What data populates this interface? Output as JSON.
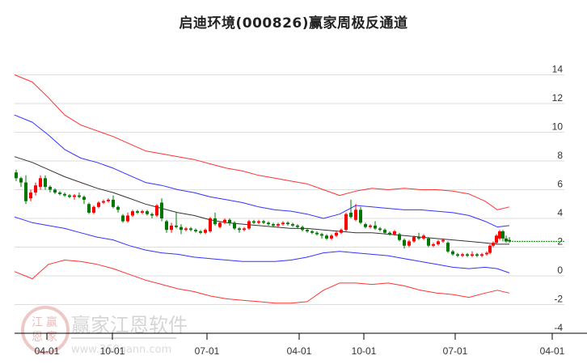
{
  "title": "启迪环境(000826)赢家周极反通道",
  "watermark": {
    "brand": "赢家江恩软件",
    "url": "www.360gann.com",
    "seal_chars": [
      "江",
      "赢",
      "恩",
      "家"
    ]
  },
  "colors": {
    "outer_band": "#ff3333",
    "inner_band": "#3333ff",
    "mid_line": "#333333",
    "candle_up": "#ff0000",
    "candle_down": "#007700",
    "last_price_line": "#008800",
    "grid": "#dddddd",
    "axis": "#000000"
  },
  "chart_data": {
    "type": "line",
    "title": "启迪环境(000826)赢家周极反通道",
    "xlabel": "",
    "ylabel": "",
    "ylim": [
      -4,
      15
    ],
    "y_ticks": [
      14,
      12,
      10,
      8,
      6,
      4,
      2,
      0,
      -2,
      -4
    ],
    "x_ticks": [
      {
        "label": "04-01",
        "x": 58
      },
      {
        "label": "10-01",
        "x": 139
      },
      {
        "label": "07-01",
        "x": 256
      },
      {
        "label": "04-01",
        "x": 370
      },
      {
        "label": "10-01",
        "x": 450
      },
      {
        "label": "07-01",
        "x": 563
      },
      {
        "label": "04-01",
        "x": 683
      }
    ],
    "grid": true,
    "legend": "none",
    "x": [
      18,
      40,
      60,
      80,
      100,
      120,
      140,
      160,
      180,
      200,
      220,
      240,
      260,
      280,
      300,
      320,
      340,
      360,
      380,
      400,
      420,
      440,
      460,
      480,
      500,
      520,
      540,
      560,
      580,
      600,
      615,
      630
    ],
    "series": [
      {
        "name": "outer_upper",
        "color": "#ff3333",
        "values": [
          14.0,
          13.5,
          12.4,
          11.2,
          10.5,
          10.1,
          9.7,
          9.2,
          8.7,
          8.5,
          8.3,
          8.1,
          7.8,
          7.5,
          7.3,
          7.0,
          6.8,
          6.6,
          6.4,
          6.0,
          5.6,
          5.9,
          6.1,
          6.0,
          6.1,
          6.0,
          6.0,
          5.9,
          5.7,
          5.2,
          4.6,
          4.8
        ]
      },
      {
        "name": "inner_upper",
        "color": "#3333ff",
        "values": [
          11.2,
          10.7,
          9.8,
          8.8,
          8.2,
          7.9,
          7.5,
          7.0,
          6.5,
          6.3,
          6.0,
          5.8,
          5.5,
          5.3,
          5.1,
          4.8,
          4.6,
          4.5,
          4.3,
          4.0,
          4.3,
          4.9,
          4.8,
          4.7,
          4.6,
          4.6,
          4.5,
          4.4,
          4.2,
          3.8,
          3.4,
          3.5
        ]
      },
      {
        "name": "middle",
        "color": "#333333",
        "values": [
          8.3,
          7.9,
          7.4,
          6.9,
          6.5,
          6.1,
          5.8,
          5.4,
          5.0,
          4.7,
          4.4,
          4.2,
          3.9,
          3.7,
          3.6,
          3.5,
          3.4,
          3.3,
          3.3,
          3.2,
          3.1,
          3.0,
          3.0,
          2.9,
          2.8,
          2.7,
          2.6,
          2.5,
          2.4,
          2.3,
          2.2,
          2.2
        ]
      },
      {
        "name": "inner_lower",
        "color": "#3333ff",
        "values": [
          4.1,
          3.7,
          3.5,
          3.3,
          3.0,
          2.7,
          2.5,
          2.1,
          1.8,
          1.6,
          1.5,
          1.3,
          1.2,
          1.1,
          1.0,
          1.0,
          1.0,
          1.1,
          1.3,
          1.6,
          1.7,
          1.6,
          1.5,
          1.4,
          1.2,
          1.0,
          0.8,
          0.6,
          0.5,
          0.6,
          0.5,
          0.2
        ]
      },
      {
        "name": "outer_lower",
        "color": "#ff3333",
        "values": [
          0.3,
          -0.2,
          0.8,
          1.1,
          1.0,
          0.8,
          0.5,
          0.1,
          -0.3,
          -0.6,
          -0.9,
          -1.1,
          -1.4,
          -1.6,
          -1.7,
          -1.8,
          -1.9,
          -1.9,
          -1.8,
          -1.0,
          -0.5,
          -0.5,
          -0.6,
          -0.5,
          -0.7,
          -1.0,
          -1.2,
          -1.3,
          -1.5,
          -1.2,
          -1.0,
          -1.2
        ]
      }
    ],
    "candles": [
      {
        "x": 20,
        "o": 7.2,
        "c": 6.8,
        "h": 7.4,
        "l": 6.6
      },
      {
        "x": 26,
        "o": 6.8,
        "c": 6.5,
        "h": 6.9,
        "l": 6.2
      },
      {
        "x": 32,
        "o": 6.5,
        "c": 5.2,
        "h": 7.0,
        "l": 5.0
      },
      {
        "x": 38,
        "o": 5.4,
        "c": 5.8,
        "h": 6.0,
        "l": 5.2
      },
      {
        "x": 44,
        "o": 5.8,
        "c": 6.3,
        "h": 6.5,
        "l": 5.6
      },
      {
        "x": 50,
        "o": 6.2,
        "c": 6.8,
        "h": 7.0,
        "l": 6.0
      },
      {
        "x": 56,
        "o": 6.8,
        "c": 6.2,
        "h": 7.0,
        "l": 6.0
      },
      {
        "x": 62,
        "o": 6.2,
        "c": 6.0,
        "h": 6.3,
        "l": 5.8
      },
      {
        "x": 68,
        "o": 6.0,
        "c": 5.8,
        "h": 6.1,
        "l": 5.7
      },
      {
        "x": 74,
        "o": 5.8,
        "c": 5.7,
        "h": 5.9,
        "l": 5.6
      },
      {
        "x": 80,
        "o": 5.7,
        "c": 5.6,
        "h": 5.8,
        "l": 5.5
      },
      {
        "x": 86,
        "o": 5.6,
        "c": 5.5,
        "h": 5.7,
        "l": 5.4
      },
      {
        "x": 92,
        "o": 5.5,
        "c": 5.6,
        "h": 5.7,
        "l": 5.3
      },
      {
        "x": 98,
        "o": 5.6,
        "c": 5.5,
        "h": 5.8,
        "l": 5.4
      },
      {
        "x": 104,
        "o": 5.5,
        "c": 5.3,
        "h": 5.6,
        "l": 5.0
      },
      {
        "x": 110,
        "o": 5.0,
        "c": 4.4,
        "h": 5.1,
        "l": 4.3
      },
      {
        "x": 116,
        "o": 4.4,
        "c": 4.8,
        "h": 4.9,
        "l": 4.3
      },
      {
        "x": 122,
        "o": 4.8,
        "c": 5.1,
        "h": 5.2,
        "l": 4.7
      },
      {
        "x": 128,
        "o": 5.1,
        "c": 5.2,
        "h": 5.3,
        "l": 5.0
      },
      {
        "x": 134,
        "o": 5.2,
        "c": 5.3,
        "h": 5.4,
        "l": 5.1
      },
      {
        "x": 140,
        "o": 5.3,
        "c": 4.8,
        "h": 5.6,
        "l": 4.7
      },
      {
        "x": 146,
        "o": 4.8,
        "c": 4.6,
        "h": 4.9,
        "l": 4.4
      },
      {
        "x": 152,
        "o": 4.2,
        "c": 3.8,
        "h": 4.3,
        "l": 3.7
      },
      {
        "x": 158,
        "o": 3.8,
        "c": 4.2,
        "h": 4.4,
        "l": 3.7
      },
      {
        "x": 164,
        "o": 4.2,
        "c": 4.5,
        "h": 4.6,
        "l": 4.1
      },
      {
        "x": 170,
        "o": 4.5,
        "c": 4.4,
        "h": 4.6,
        "l": 4.3
      },
      {
        "x": 176,
        "o": 4.4,
        "c": 4.5,
        "h": 4.6,
        "l": 4.3
      },
      {
        "x": 182,
        "o": 4.5,
        "c": 4.3,
        "h": 4.6,
        "l": 4.2
      },
      {
        "x": 188,
        "o": 4.3,
        "c": 4.2,
        "h": 4.4,
        "l": 4.0
      },
      {
        "x": 194,
        "o": 4.2,
        "c": 4.9,
        "h": 5.0,
        "l": 4.1
      },
      {
        "x": 200,
        "o": 5.1,
        "c": 4.0,
        "h": 5.4,
        "l": 3.8
      },
      {
        "x": 206,
        "o": 3.8,
        "c": 3.2,
        "h": 3.9,
        "l": 3.0
      },
      {
        "x": 212,
        "o": 3.2,
        "c": 3.5,
        "h": 3.7,
        "l": 3.0
      },
      {
        "x": 218,
        "o": 3.5,
        "c": 3.4,
        "h": 4.4,
        "l": 3.3
      },
      {
        "x": 224,
        "o": 3.4,
        "c": 3.2,
        "h": 3.6,
        "l": 2.9
      },
      {
        "x": 230,
        "o": 3.2,
        "c": 3.3,
        "h": 3.4,
        "l": 3.1
      },
      {
        "x": 236,
        "o": 3.3,
        "c": 3.2,
        "h": 3.4,
        "l": 3.1
      },
      {
        "x": 242,
        "o": 3.2,
        "c": 3.1,
        "h": 3.3,
        "l": 3.0
      },
      {
        "x": 248,
        "o": 3.1,
        "c": 3.0,
        "h": 3.2,
        "l": 2.9
      },
      {
        "x": 254,
        "o": 3.0,
        "c": 3.2,
        "h": 3.3,
        "l": 2.9
      },
      {
        "x": 260,
        "o": 3.1,
        "c": 4.0,
        "h": 4.1,
        "l": 3.0
      },
      {
        "x": 266,
        "o": 4.0,
        "c": 3.6,
        "h": 4.4,
        "l": 3.5
      },
      {
        "x": 272,
        "o": 3.4,
        "c": 3.7,
        "h": 3.8,
        "l": 3.3
      },
      {
        "x": 278,
        "o": 3.7,
        "c": 3.9,
        "h": 4.0,
        "l": 3.6
      },
      {
        "x": 284,
        "o": 3.9,
        "c": 3.7,
        "h": 4.0,
        "l": 3.5
      },
      {
        "x": 290,
        "o": 3.7,
        "c": 3.3,
        "h": 3.8,
        "l": 3.2
      },
      {
        "x": 296,
        "o": 3.3,
        "c": 3.2,
        "h": 3.4,
        "l": 3.0
      },
      {
        "x": 302,
        "o": 3.2,
        "c": 3.3,
        "h": 3.4,
        "l": 3.1
      },
      {
        "x": 308,
        "o": 3.3,
        "c": 3.8,
        "h": 3.9,
        "l": 3.2
      },
      {
        "x": 314,
        "o": 3.8,
        "c": 3.7,
        "h": 3.9,
        "l": 3.6
      },
      {
        "x": 320,
        "o": 3.7,
        "c": 3.8,
        "h": 3.9,
        "l": 3.6
      },
      {
        "x": 326,
        "o": 3.8,
        "c": 3.7,
        "h": 3.9,
        "l": 3.6
      },
      {
        "x": 332,
        "o": 3.7,
        "c": 3.6,
        "h": 3.8,
        "l": 3.5
      },
      {
        "x": 338,
        "o": 3.6,
        "c": 3.5,
        "h": 3.7,
        "l": 3.4
      },
      {
        "x": 344,
        "o": 3.5,
        "c": 3.6,
        "h": 3.7,
        "l": 3.4
      },
      {
        "x": 350,
        "o": 3.6,
        "c": 3.7,
        "h": 3.8,
        "l": 3.5
      },
      {
        "x": 356,
        "o": 3.7,
        "c": 3.6,
        "h": 3.8,
        "l": 3.5
      },
      {
        "x": 362,
        "o": 3.6,
        "c": 3.5,
        "h": 3.7,
        "l": 3.4
      },
      {
        "x": 368,
        "o": 3.5,
        "c": 3.4,
        "h": 3.6,
        "l": 3.3
      },
      {
        "x": 374,
        "o": 3.4,
        "c": 3.2,
        "h": 3.5,
        "l": 3.1
      },
      {
        "x": 380,
        "o": 3.2,
        "c": 3.1,
        "h": 3.3,
        "l": 3.0
      },
      {
        "x": 386,
        "o": 3.1,
        "c": 3.0,
        "h": 3.2,
        "l": 2.9
      },
      {
        "x": 392,
        "o": 3.0,
        "c": 2.9,
        "h": 3.1,
        "l": 2.8
      },
      {
        "x": 398,
        "o": 2.9,
        "c": 2.8,
        "h": 3.0,
        "l": 2.6
      },
      {
        "x": 404,
        "o": 2.8,
        "c": 2.6,
        "h": 2.9,
        "l": 2.5
      },
      {
        "x": 410,
        "o": 2.6,
        "c": 2.8,
        "h": 2.9,
        "l": 2.5
      },
      {
        "x": 416,
        "o": 2.8,
        "c": 3.0,
        "h": 3.1,
        "l": 2.7
      },
      {
        "x": 422,
        "o": 3.0,
        "c": 3.2,
        "h": 3.3,
        "l": 2.9
      },
      {
        "x": 428,
        "o": 3.2,
        "c": 4.3,
        "h": 4.4,
        "l": 3.1
      },
      {
        "x": 434,
        "o": 4.4,
        "c": 4.1,
        "h": 5.3,
        "l": 4.0
      },
      {
        "x": 440,
        "o": 3.9,
        "c": 4.6,
        "h": 5.0,
        "l": 3.8
      },
      {
        "x": 446,
        "o": 4.6,
        "c": 3.7,
        "h": 4.8,
        "l": 3.6
      },
      {
        "x": 452,
        "o": 3.6,
        "c": 3.4,
        "h": 3.7,
        "l": 3.3
      },
      {
        "x": 458,
        "o": 3.4,
        "c": 3.5,
        "h": 3.6,
        "l": 3.3
      },
      {
        "x": 464,
        "o": 3.5,
        "c": 3.3,
        "h": 3.8,
        "l": 3.2
      },
      {
        "x": 470,
        "o": 3.3,
        "c": 3.2,
        "h": 3.4,
        "l": 3.1
      },
      {
        "x": 476,
        "o": 3.2,
        "c": 3.0,
        "h": 3.3,
        "l": 2.9
      },
      {
        "x": 482,
        "o": 3.0,
        "c": 2.9,
        "h": 3.1,
        "l": 2.8
      },
      {
        "x": 488,
        "o": 2.9,
        "c": 3.1,
        "h": 3.2,
        "l": 2.8
      },
      {
        "x": 494,
        "o": 2.9,
        "c": 2.5,
        "h": 3.0,
        "l": 2.4
      },
      {
        "x": 500,
        "o": 2.5,
        "c": 2.1,
        "h": 2.6,
        "l": 1.9
      },
      {
        "x": 506,
        "o": 2.1,
        "c": 2.4,
        "h": 2.5,
        "l": 2.0
      },
      {
        "x": 512,
        "o": 2.4,
        "c": 2.7,
        "h": 2.8,
        "l": 2.3
      },
      {
        "x": 518,
        "o": 2.7,
        "c": 2.6,
        "h": 3.0,
        "l": 2.5
      },
      {
        "x": 524,
        "o": 2.6,
        "c": 2.8,
        "h": 2.9,
        "l": 2.5
      },
      {
        "x": 530,
        "o": 2.6,
        "c": 2.1,
        "h": 2.7,
        "l": 2.0
      },
      {
        "x": 536,
        "o": 2.1,
        "c": 2.2,
        "h": 2.3,
        "l": 2.0
      },
      {
        "x": 542,
        "o": 2.2,
        "c": 2.4,
        "h": 2.5,
        "l": 2.1
      },
      {
        "x": 548,
        "o": 2.4,
        "c": 2.5,
        "h": 2.6,
        "l": 2.3
      },
      {
        "x": 554,
        "o": 2.3,
        "c": 1.7,
        "h": 2.4,
        "l": 1.6
      },
      {
        "x": 560,
        "o": 1.7,
        "c": 1.5,
        "h": 1.8,
        "l": 1.4
      },
      {
        "x": 566,
        "o": 1.5,
        "c": 1.4,
        "h": 1.6,
        "l": 1.3
      },
      {
        "x": 572,
        "o": 1.4,
        "c": 1.5,
        "h": 1.6,
        "l": 1.3
      },
      {
        "x": 578,
        "o": 1.5,
        "c": 1.4,
        "h": 1.6,
        "l": 1.3
      },
      {
        "x": 584,
        "o": 1.4,
        "c": 1.5,
        "h": 1.7,
        "l": 1.3
      },
      {
        "x": 590,
        "o": 1.5,
        "c": 1.4,
        "h": 1.6,
        "l": 1.3
      },
      {
        "x": 596,
        "o": 1.4,
        "c": 1.5,
        "h": 1.6,
        "l": 1.3
      },
      {
        "x": 602,
        "o": 1.5,
        "c": 1.6,
        "h": 1.7,
        "l": 1.4
      },
      {
        "x": 606,
        "o": 1.6,
        "c": 2.1,
        "h": 2.2,
        "l": 1.5
      },
      {
        "x": 610,
        "o": 2.1,
        "c": 2.3,
        "h": 2.4,
        "l": 2.0
      },
      {
        "x": 614,
        "o": 2.3,
        "c": 2.8,
        "h": 2.9,
        "l": 2.2
      },
      {
        "x": 618,
        "o": 2.6,
        "c": 3.1,
        "h": 3.2,
        "l": 2.5
      },
      {
        "x": 622,
        "o": 3.1,
        "c": 2.6,
        "h": 3.2,
        "l": 2.4
      },
      {
        "x": 626,
        "o": 2.6,
        "c": 2.4,
        "h": 2.8,
        "l": 2.3
      },
      {
        "x": 630,
        "o": 2.5,
        "c": 2.4,
        "h": 2.7,
        "l": 2.3
      }
    ],
    "last_price": 2.4,
    "last_price_line_x": [
      630,
      698
    ]
  }
}
